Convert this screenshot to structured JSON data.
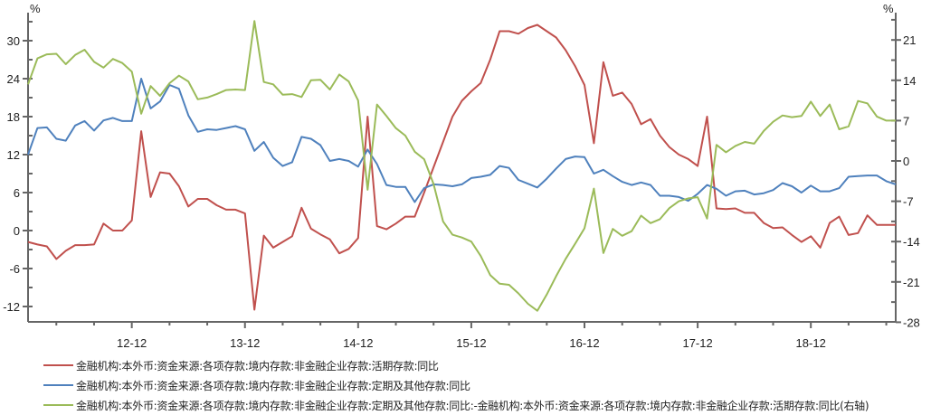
{
  "chart_data": {
    "type": "line",
    "title": "",
    "xlabel": "",
    "ylabel_left": "%",
    "ylabel_right": "%",
    "x_tick_labels": [
      "12-12",
      "13-12",
      "14-12",
      "15-12",
      "16-12",
      "17-12",
      "18-12"
    ],
    "x_start": "2012-01",
    "x_end": "2019-09",
    "frequency": "monthly",
    "left_axis": {
      "ticks": [
        30,
        24,
        18,
        12,
        6,
        0,
        -6,
        -12
      ],
      "range": [
        -14,
        34
      ]
    },
    "right_axis": {
      "ticks": [
        21,
        14,
        7,
        0,
        -7,
        -14,
        -21,
        -28
      ],
      "range": [
        -28,
        26
      ]
    },
    "grid": false,
    "legend_position": "bottom",
    "series": [
      {
        "name": "金融机构:本外币:资金来源:各项存款:境内存款:非金融企业存款:活期存款:同比",
        "axis": "left",
        "color": "#C0504D",
        "values": [
          -1.8,
          -2.2,
          -2.5,
          -4.5,
          -3.2,
          -2.3,
          -2.3,
          -2.2,
          1.1,
          0.0,
          0.0,
          1.6,
          15.7,
          5.3,
          9.2,
          9.0,
          7.0,
          3.8,
          5.0,
          5.0,
          4.0,
          3.3,
          3.3,
          2.7,
          -12.5,
          -0.8,
          -2.7,
          -1.8,
          -0.9,
          3.6,
          0.3,
          -0.6,
          -1.4,
          -3.6,
          -2.9,
          -1.2,
          18.0,
          0.7,
          0.2,
          1.1,
          2.2,
          2.2,
          6.0,
          10.0,
          14.0,
          18.0,
          20.5,
          22.0,
          23.3,
          27.0,
          31.5,
          31.5,
          31.1,
          32.0,
          32.5,
          31.5,
          30.5,
          28.5,
          26.0,
          23.0,
          13.8,
          26.6,
          21.3,
          21.8,
          20.0,
          16.8,
          17.6,
          15.0,
          13.2,
          12.0,
          11.3,
          10.2,
          18.0,
          3.5,
          3.4,
          3.5,
          2.8,
          2.8,
          1.2,
          0.4,
          0.5,
          -0.7,
          -1.8,
          -0.9,
          -2.7,
          1.2,
          2.2,
          -0.7,
          -0.4,
          2.4,
          0.9,
          0.9,
          0.9
        ]
      },
      {
        "name": "金融机构:本外币:资金来源:各项存款:境内存款:非金融企业存款:定期及其他存款:同比",
        "axis": "left",
        "color": "#4F81BD",
        "values": [
          12.0,
          16.2,
          16.3,
          14.5,
          14.2,
          16.6,
          17.3,
          15.8,
          17.4,
          17.8,
          17.3,
          17.3,
          24.0,
          19.3,
          20.4,
          23.0,
          22.4,
          18.2,
          15.6,
          16.0,
          15.9,
          16.2,
          16.5,
          16.0,
          12.6,
          14.0,
          11.5,
          10.2,
          10.8,
          14.8,
          14.5,
          13.5,
          11.0,
          11.3,
          11.0,
          10.1,
          12.8,
          10.5,
          7.2,
          6.9,
          6.9,
          4.5,
          6.7,
          7.3,
          7.2,
          7.0,
          7.3,
          8.3,
          8.5,
          8.8,
          10.2,
          9.9,
          8.0,
          7.4,
          6.8,
          8.2,
          9.8,
          11.3,
          11.7,
          11.6,
          9.0,
          9.6,
          8.6,
          7.7,
          7.2,
          7.6,
          7.2,
          5.5,
          5.5,
          5.3,
          4.7,
          5.8,
          7.2,
          6.6,
          5.5,
          6.2,
          6.3,
          5.7,
          5.9,
          6.4,
          7.5,
          7.0,
          6.0,
          7.1,
          6.2,
          6.2,
          6.7,
          8.5,
          8.6,
          8.7,
          8.7,
          7.8,
          7.3
        ]
      },
      {
        "name": "金融机构:本外币:资金来源:各项存款:境内存款:非金融企业存款:定期及其他存款:同比:-金融机构:本外币:资金来源:各项存款:境内存款:非金融企业存款:活期存款:同比(右轴)",
        "axis": "right",
        "color": "#9BBB59",
        "values": [
          13.3,
          17.8,
          18.5,
          18.6,
          16.8,
          18.4,
          19.3,
          17.2,
          16.2,
          17.7,
          17.0,
          15.5,
          8.2,
          13.0,
          11.3,
          13.5,
          14.8,
          13.8,
          10.7,
          11.0,
          11.6,
          12.3,
          12.4,
          12.3,
          24.3,
          13.7,
          13.3,
          11.5,
          11.6,
          11.1,
          14.0,
          14.1,
          12.4,
          15.0,
          13.8,
          10.5,
          -5.0,
          9.8,
          7.8,
          5.7,
          4.4,
          1.6,
          0.3,
          -4.0,
          -10.5,
          -12.8,
          -13.3,
          -14.0,
          -16.5,
          -19.8,
          -21.3,
          -21.5,
          -23.0,
          -24.8,
          -26.0,
          -23.2,
          -20.0,
          -17.0,
          -14.4,
          -11.7,
          -4.8,
          -16.0,
          -11.8,
          -13.0,
          -12.2,
          -9.5,
          -10.8,
          -10.1,
          -8.2,
          -7.0,
          -6.5,
          -6.3,
          -10.0,
          2.8,
          1.5,
          2.6,
          3.3,
          3.0,
          5.2,
          6.8,
          7.9,
          7.6,
          7.8,
          10.3,
          7.8,
          9.8,
          5.5,
          6.0,
          10.4,
          10.0,
          7.7,
          7.0,
          7.0
        ]
      }
    ]
  },
  "legend": {
    "items": [
      {
        "label": "金融机构:本外币:资金来源:各项存款:境内存款:非金融企业存款:活期存款:同比",
        "color": "#C0504D"
      },
      {
        "label": "金融机构:本外币:资金来源:各项存款:境内存款:非金融企业存款:定期及其他存款:同比",
        "color": "#4F81BD"
      },
      {
        "label": "金融机构:本外币:资金来源:各项存款:境内存款:非金融企业存款:定期及其他存款:同比:-金融机构:本外币:资金来源:各项存款:境内存款:非金融企业存款:活期存款:同比(右轴)",
        "color": "#9BBB59"
      }
    ]
  }
}
